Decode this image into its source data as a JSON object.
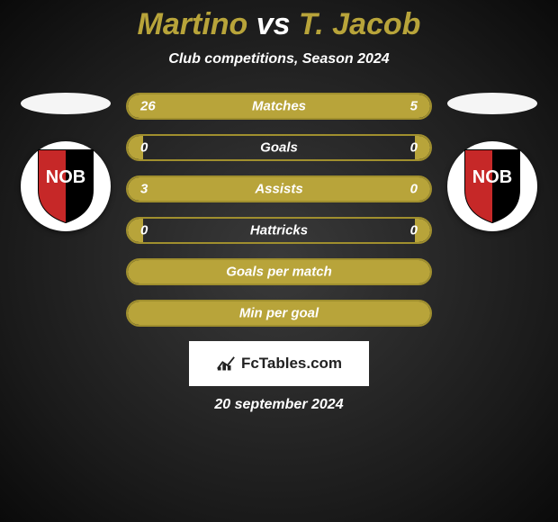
{
  "title": {
    "player1": "Martino",
    "vs": "vs",
    "player2": "T. Jacob"
  },
  "subtitle": "Club competitions, Season 2024",
  "badge": {
    "text": "NOB",
    "bg_circle": "#ffffff",
    "shield_left": "#c62828",
    "shield_right": "#000000",
    "shield_stroke": "#000000",
    "text_color": "#ffffff"
  },
  "bars": [
    {
      "label": "Matches",
      "left": "26",
      "right": "5",
      "leftVal": 26,
      "rightVal": 5,
      "showValues": true
    },
    {
      "label": "Goals",
      "left": "0",
      "right": "0",
      "leftVal": 0,
      "rightVal": 0,
      "showValues": true
    },
    {
      "label": "Assists",
      "left": "3",
      "right": "0",
      "leftVal": 3,
      "rightVal": 0,
      "showValues": true
    },
    {
      "label": "Hattricks",
      "left": "0",
      "right": "0",
      "leftVal": 0,
      "rightVal": 0,
      "showValues": true
    },
    {
      "label": "Goals per match",
      "left": "",
      "right": "",
      "leftVal": 1,
      "rightVal": 1,
      "showValues": false
    },
    {
      "label": "Min per goal",
      "left": "",
      "right": "",
      "leftVal": 1,
      "rightVal": 1,
      "showValues": false
    }
  ],
  "bar_style": {
    "border_color": "#a08f2e",
    "fill_color": "#b8a43a",
    "label_color": "#ffffff"
  },
  "footer": {
    "brand": "FcTables.com",
    "bg": "#ffffff",
    "text_color": "#222222"
  },
  "date": "20 september 2024",
  "colors": {
    "title_accent": "#b8a43a",
    "title_vs": "#ffffff",
    "subtitle": "#ffffff",
    "silhouette": "#f5f5f5",
    "date": "#ffffff"
  }
}
